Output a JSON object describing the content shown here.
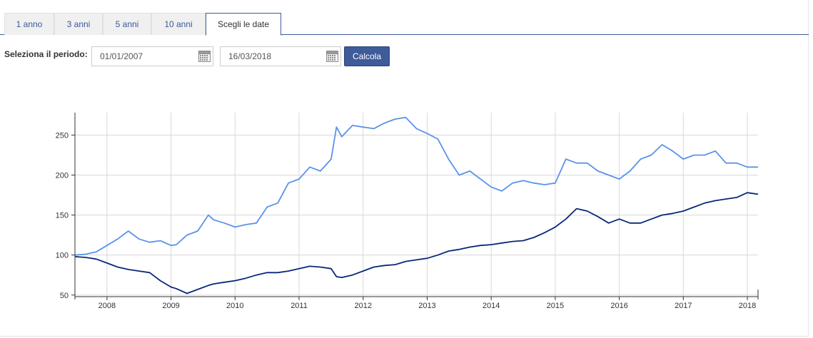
{
  "tabs": [
    {
      "label": "1 anno",
      "active": false
    },
    {
      "label": "3 anni",
      "active": false
    },
    {
      "label": "5 anni",
      "active": false
    },
    {
      "label": "10 anni",
      "active": false
    },
    {
      "label": "Scegli le date",
      "active": true
    }
  ],
  "period": {
    "label": "Seleziona il periodo:",
    "start_date": "01/01/2007",
    "end_date": "16/03/2018",
    "calculate_label": "Calcola"
  },
  "icons": {
    "date_picker": "calendar-icon"
  },
  "colors": {
    "accent": "#3e5b9a",
    "series_light": "#5b93e8",
    "series_dark": "#0a2778"
  },
  "chart_data": {
    "type": "line",
    "title": "",
    "xlabel": "",
    "ylabel": "",
    "x_range": [
      "2007-07",
      "2018-03"
    ],
    "ylim": [
      48,
      278
    ],
    "yticks": [
      50,
      100,
      150,
      200,
      250
    ],
    "xticks": [
      "2008",
      "2009",
      "2010",
      "2011",
      "2012",
      "2013",
      "2014",
      "2015",
      "2016",
      "2017",
      "2018"
    ],
    "grid": true,
    "legend": "none",
    "series": [
      {
        "color": "#5b93e8",
        "points": [
          [
            "2007-07",
            100
          ],
          [
            "2007-09",
            101
          ],
          [
            "2007-11",
            104
          ],
          [
            "2008-01",
            112
          ],
          [
            "2008-03",
            120
          ],
          [
            "2008-05",
            130
          ],
          [
            "2008-07",
            120
          ],
          [
            "2008-09",
            116
          ],
          [
            "2008-11",
            118
          ],
          [
            "2009-01",
            112
          ],
          [
            "2009-02",
            113
          ],
          [
            "2009-04",
            125
          ],
          [
            "2009-06",
            130
          ],
          [
            "2009-08",
            150
          ],
          [
            "2009-09",
            144
          ],
          [
            "2009-11",
            140
          ],
          [
            "2010-01",
            135
          ],
          [
            "2010-03",
            138
          ],
          [
            "2010-05",
            140
          ],
          [
            "2010-07",
            160
          ],
          [
            "2010-09",
            165
          ],
          [
            "2010-11",
            190
          ],
          [
            "2011-01",
            195
          ],
          [
            "2011-03",
            210
          ],
          [
            "2011-05",
            205
          ],
          [
            "2011-07",
            220
          ],
          [
            "2011-08",
            260
          ],
          [
            "2011-09",
            248
          ],
          [
            "2011-11",
            262
          ],
          [
            "2012-01",
            260
          ],
          [
            "2012-03",
            258
          ],
          [
            "2012-05",
            265
          ],
          [
            "2012-07",
            270
          ],
          [
            "2012-09",
            272
          ],
          [
            "2012-11",
            258
          ],
          [
            "2013-01",
            252
          ],
          [
            "2013-03",
            245
          ],
          [
            "2013-05",
            220
          ],
          [
            "2013-07",
            200
          ],
          [
            "2013-09",
            205
          ],
          [
            "2013-11",
            195
          ],
          [
            "2014-01",
            185
          ],
          [
            "2014-03",
            180
          ],
          [
            "2014-05",
            190
          ],
          [
            "2014-07",
            193
          ],
          [
            "2014-09",
            190
          ],
          [
            "2014-11",
            188
          ],
          [
            "2015-01",
            190
          ],
          [
            "2015-03",
            220
          ],
          [
            "2015-05",
            215
          ],
          [
            "2015-07",
            215
          ],
          [
            "2015-09",
            205
          ],
          [
            "2015-11",
            200
          ],
          [
            "2016-01",
            195
          ],
          [
            "2016-03",
            205
          ],
          [
            "2016-05",
            220
          ],
          [
            "2016-07",
            225
          ],
          [
            "2016-09",
            238
          ],
          [
            "2016-11",
            230
          ],
          [
            "2017-01",
            220
          ],
          [
            "2017-03",
            225
          ],
          [
            "2017-05",
            225
          ],
          [
            "2017-07",
            230
          ],
          [
            "2017-09",
            215
          ],
          [
            "2017-11",
            215
          ],
          [
            "2018-01",
            210
          ],
          [
            "2018-03",
            210
          ]
        ]
      },
      {
        "color": "#0a2778",
        "points": [
          [
            "2007-07",
            98
          ],
          [
            "2007-09",
            97
          ],
          [
            "2007-11",
            95
          ],
          [
            "2008-01",
            90
          ],
          [
            "2008-03",
            85
          ],
          [
            "2008-05",
            82
          ],
          [
            "2008-07",
            80
          ],
          [
            "2008-09",
            78
          ],
          [
            "2008-11",
            68
          ],
          [
            "2009-01",
            60
          ],
          [
            "2009-02",
            58
          ],
          [
            "2009-04",
            52
          ],
          [
            "2009-06",
            57
          ],
          [
            "2009-08",
            62
          ],
          [
            "2009-09",
            64
          ],
          [
            "2009-11",
            66
          ],
          [
            "2010-01",
            68
          ],
          [
            "2010-03",
            71
          ],
          [
            "2010-05",
            75
          ],
          [
            "2010-07",
            78
          ],
          [
            "2010-09",
            78
          ],
          [
            "2010-11",
            80
          ],
          [
            "2011-01",
            83
          ],
          [
            "2011-03",
            86
          ],
          [
            "2011-05",
            85
          ],
          [
            "2011-07",
            83
          ],
          [
            "2011-08",
            73
          ],
          [
            "2011-09",
            72
          ],
          [
            "2011-11",
            75
          ],
          [
            "2012-01",
            80
          ],
          [
            "2012-03",
            85
          ],
          [
            "2012-05",
            87
          ],
          [
            "2012-07",
            88
          ],
          [
            "2012-09",
            92
          ],
          [
            "2012-11",
            94
          ],
          [
            "2013-01",
            96
          ],
          [
            "2013-03",
            100
          ],
          [
            "2013-05",
            105
          ],
          [
            "2013-07",
            107
          ],
          [
            "2013-09",
            110
          ],
          [
            "2013-11",
            112
          ],
          [
            "2014-01",
            113
          ],
          [
            "2014-03",
            115
          ],
          [
            "2014-05",
            117
          ],
          [
            "2014-07",
            118
          ],
          [
            "2014-09",
            122
          ],
          [
            "2014-11",
            128
          ],
          [
            "2015-01",
            135
          ],
          [
            "2015-03",
            145
          ],
          [
            "2015-05",
            158
          ],
          [
            "2015-07",
            155
          ],
          [
            "2015-09",
            148
          ],
          [
            "2015-11",
            140
          ],
          [
            "2016-01",
            145
          ],
          [
            "2016-03",
            140
          ],
          [
            "2016-05",
            140
          ],
          [
            "2016-07",
            145
          ],
          [
            "2016-09",
            150
          ],
          [
            "2016-11",
            152
          ],
          [
            "2017-01",
            155
          ],
          [
            "2017-03",
            160
          ],
          [
            "2017-05",
            165
          ],
          [
            "2017-07",
            168
          ],
          [
            "2017-09",
            170
          ],
          [
            "2017-11",
            172
          ],
          [
            "2018-01",
            178
          ],
          [
            "2018-03",
            176
          ]
        ]
      }
    ]
  }
}
